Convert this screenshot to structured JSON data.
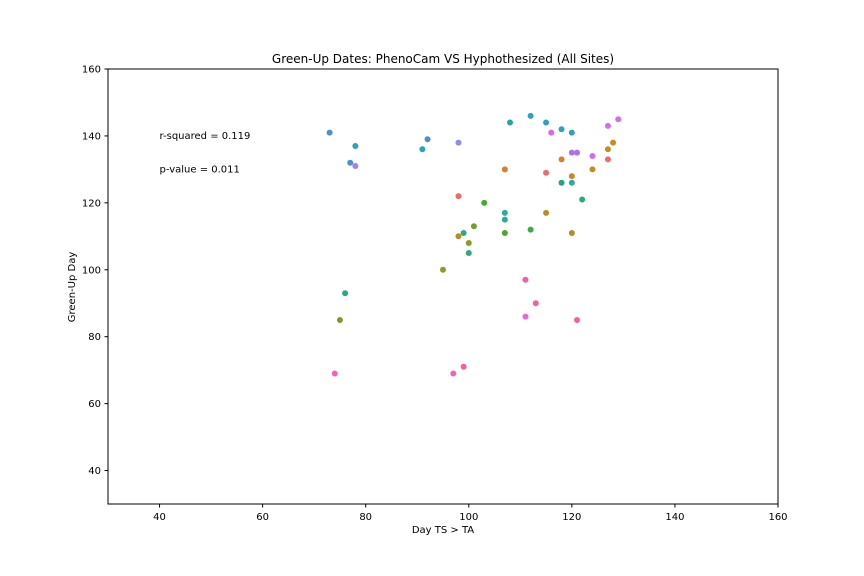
{
  "chart_data": {
    "type": "scatter",
    "title": "Green-Up Dates: PhenoCam VS Hyphothesized (All Sites)",
    "xlabel": "Day TS > TA",
    "ylabel": "Green-Up Day",
    "xlim": [
      30,
      160
    ],
    "ylim": [
      30,
      160
    ],
    "xticks": [
      40,
      60,
      80,
      100,
      120,
      140,
      160
    ],
    "yticks": [
      40,
      60,
      80,
      100,
      120,
      140,
      160
    ],
    "grid": false,
    "annotations": [
      {
        "text": "r-squared = 0.119",
        "x": 40,
        "y": 140
      },
      {
        "text": "p-value = 0.011",
        "x": 40,
        "y": 130
      }
    ],
    "points": [
      {
        "x": 73,
        "y": 141,
        "color": "#4c8fd9"
      },
      {
        "x": 78,
        "y": 137,
        "color": "#2aa3c0"
      },
      {
        "x": 77,
        "y": 132,
        "color": "#4c8fd9"
      },
      {
        "x": 78,
        "y": 131,
        "color": "#a77ef0"
      },
      {
        "x": 76,
        "y": 93,
        "color": "#2bab7a"
      },
      {
        "x": 75,
        "y": 85,
        "color": "#7a9c28"
      },
      {
        "x": 74,
        "y": 69,
        "color": "#f063b8"
      },
      {
        "x": 91,
        "y": 136,
        "color": "#2aa3c0"
      },
      {
        "x": 92,
        "y": 139,
        "color": "#4c8fd9"
      },
      {
        "x": 98,
        "y": 138,
        "color": "#8a8cee"
      },
      {
        "x": 98,
        "y": 122,
        "color": "#f3686b"
      },
      {
        "x": 98,
        "y": 110,
        "color": "#b0911f"
      },
      {
        "x": 99,
        "y": 111,
        "color": "#2bab7a"
      },
      {
        "x": 100,
        "y": 108,
        "color": "#8f9b23"
      },
      {
        "x": 100,
        "y": 105,
        "color": "#2bab7a"
      },
      {
        "x": 101,
        "y": 113,
        "color": "#6ba22a"
      },
      {
        "x": 103,
        "y": 120,
        "color": "#4aa730"
      },
      {
        "x": 95,
        "y": 100,
        "color": "#8f9b23"
      },
      {
        "x": 97,
        "y": 69,
        "color": "#f063b8"
      },
      {
        "x": 99,
        "y": 71,
        "color": "#f45fa3"
      },
      {
        "x": 107,
        "y": 130,
        "color": "#e07a2f"
      },
      {
        "x": 107,
        "y": 117,
        "color": "#2bab9a"
      },
      {
        "x": 107,
        "y": 115,
        "color": "#2bab9a"
      },
      {
        "x": 107,
        "y": 111,
        "color": "#4aa730"
      },
      {
        "x": 108,
        "y": 144,
        "color": "#1fa8a8"
      },
      {
        "x": 111,
        "y": 97,
        "color": "#f45fa3"
      },
      {
        "x": 111,
        "y": 86,
        "color": "#f063d0"
      },
      {
        "x": 112,
        "y": 146,
        "color": "#2aa3c0"
      },
      {
        "x": 112,
        "y": 112,
        "color": "#38ac45"
      },
      {
        "x": 113,
        "y": 90,
        "color": "#f45fa3"
      },
      {
        "x": 115,
        "y": 144,
        "color": "#2aa3c0"
      },
      {
        "x": 115,
        "y": 129,
        "color": "#f3686b"
      },
      {
        "x": 115,
        "y": 117,
        "color": "#b0911f"
      },
      {
        "x": 116,
        "y": 141,
        "color": "#e062e8"
      },
      {
        "x": 118,
        "y": 142,
        "color": "#2aa3c0"
      },
      {
        "x": 118,
        "y": 133,
        "color": "#e07a2f"
      },
      {
        "x": 118,
        "y": 126,
        "color": "#22a67d"
      },
      {
        "x": 120,
        "y": 141,
        "color": "#2aa3c0"
      },
      {
        "x": 120,
        "y": 135,
        "color": "#b06ef0"
      },
      {
        "x": 120,
        "y": 128,
        "color": "#c98b1e"
      },
      {
        "x": 120,
        "y": 126,
        "color": "#2bab9a"
      },
      {
        "x": 120,
        "y": 111,
        "color": "#b0911f"
      },
      {
        "x": 121,
        "y": 135,
        "color": "#b06ef0"
      },
      {
        "x": 121,
        "y": 85,
        "color": "#f45fa3"
      },
      {
        "x": 122,
        "y": 121,
        "color": "#2bab7a"
      },
      {
        "x": 124,
        "y": 134,
        "color": "#d46cf0"
      },
      {
        "x": 124,
        "y": 130,
        "color": "#c98b1e"
      },
      {
        "x": 127,
        "y": 143,
        "color": "#d46cf0"
      },
      {
        "x": 127,
        "y": 136,
        "color": "#c98b1e"
      },
      {
        "x": 127,
        "y": 133,
        "color": "#f3686b"
      },
      {
        "x": 128,
        "y": 138,
        "color": "#c98b1e"
      },
      {
        "x": 129,
        "y": 145,
        "color": "#d46cf0"
      }
    ]
  }
}
